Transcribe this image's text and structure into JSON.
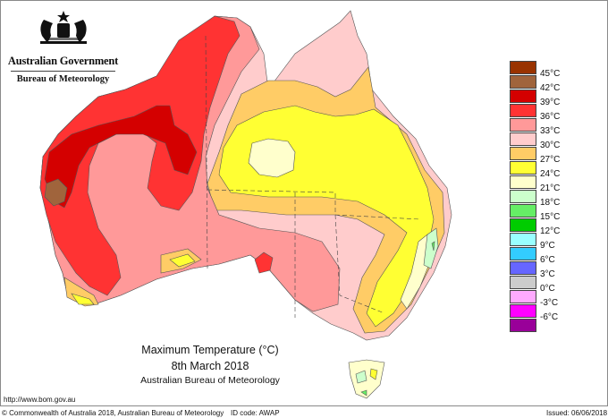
{
  "header": {
    "government": "Australian Government",
    "bureau": "Bureau of Meteorology",
    "crest_icon": "coat-of-arms-icon"
  },
  "title": {
    "line1": "Maximum Temperature (°C)",
    "line2": "8th March 2018",
    "line3": "Australian Bureau of Meteorology"
  },
  "legend": {
    "items": [
      {
        "label": "45°C",
        "color": "#993300"
      },
      {
        "label": "42°C",
        "color": "#a0643c"
      },
      {
        "label": "39°C",
        "color": "#d40000"
      },
      {
        "label": "36°C",
        "color": "#ff3333"
      },
      {
        "label": "33°C",
        "color": "#ff9999"
      },
      {
        "label": "30°C",
        "color": "#ffcccc"
      },
      {
        "label": "27°C",
        "color": "#ffcc66"
      },
      {
        "label": "24°C",
        "color": "#ffff33"
      },
      {
        "label": "21°C",
        "color": "#ffffcc"
      },
      {
        "label": "18°C",
        "color": "#ccffcc"
      },
      {
        "label": "15°C",
        "color": "#66ee66"
      },
      {
        "label": "12°C",
        "color": "#00cc00"
      },
      {
        "label": "9°C",
        "color": "#99ffff"
      },
      {
        "label": "6°C",
        "color": "#33ccff"
      },
      {
        "label": "3°C",
        "color": "#6666ff"
      },
      {
        "label": "0°C",
        "color": "#cccccc"
      },
      {
        "label": "-3°C",
        "color": "#ffaaff"
      },
      {
        "label": "-6°C",
        "color": "#ff00ff"
      },
      {
        "label": "",
        "color": "#990099"
      }
    ]
  },
  "footer": {
    "url": "http://www.bom.gov.au",
    "copyright": "© Commonwealth of Australia 2018, Australian Bureau of Meteorology",
    "id_code": "ID code: AWAP",
    "issued": "Issued: 06/06/2018"
  }
}
